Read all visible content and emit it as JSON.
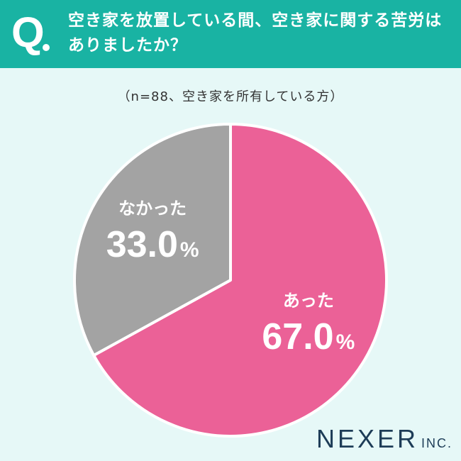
{
  "header": {
    "q_label": "Q",
    "question_line1": "空き家を放置している間、空き家に関する苦労は",
    "question_line2": "ありましたか？",
    "background_color": "#19b3a3"
  },
  "subtitle": "（n=88、空き家を所有している方）",
  "chart_data": {
    "type": "pie",
    "slices": [
      {
        "label": "あった",
        "value": 67.0,
        "display": "67.0",
        "unit": "%",
        "color": "#eb6197"
      },
      {
        "label": "なかった",
        "value": 33.0,
        "display": "33.0",
        "unit": "%",
        "color": "#a3a3a3"
      }
    ],
    "start": "top",
    "direction": "clockwise"
  },
  "brand": {
    "name": "NEXER",
    "suffix": "INC."
  }
}
